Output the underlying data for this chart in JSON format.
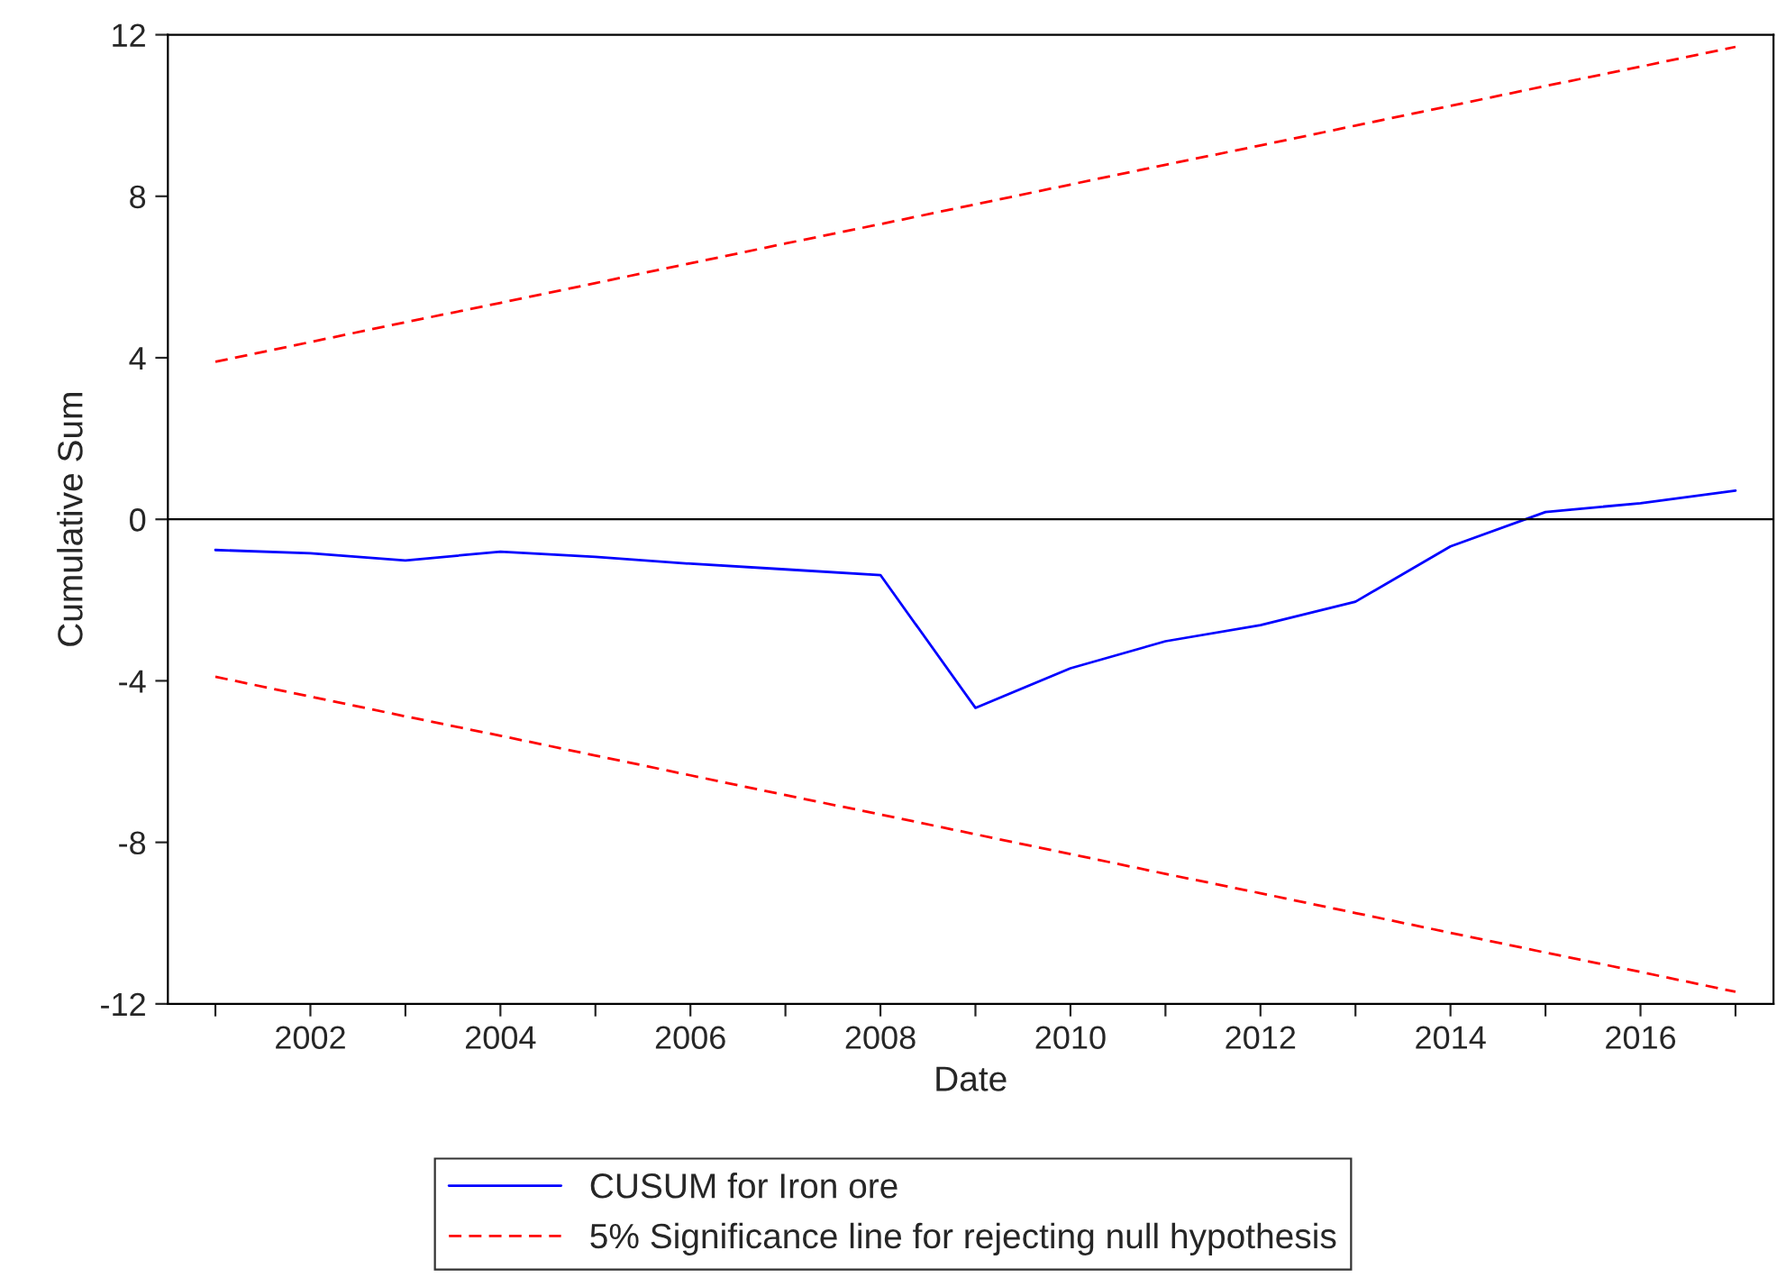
{
  "chart_data": {
    "type": "line",
    "xlabel": "Date",
    "ylabel": "Cumulative Sum",
    "x": [
      2001,
      2002,
      2003,
      2004,
      2005,
      2006,
      2007,
      2008,
      2009,
      2010,
      2011,
      2012,
      2013,
      2014,
      2015,
      2016,
      2017
    ],
    "series": [
      {
        "name": "CUSUM for Iron ore",
        "color": "#0000ff",
        "line_style": "solid",
        "values": [
          -0.76,
          -0.84,
          -1.02,
          -0.8,
          -0.93,
          -1.1,
          -1.24,
          -1.38,
          -4.67,
          -3.69,
          -3.02,
          -2.62,
          -2.04,
          -0.67,
          0.18,
          0.4,
          0.71
        ]
      },
      {
        "name": "5% Significance line for rejecting null hypothesis",
        "color": "#ff0000",
        "line_style": "dashed",
        "values": [
          3.9,
          4.39,
          4.88,
          5.36,
          5.85,
          6.34,
          6.83,
          7.31,
          7.8,
          8.29,
          8.78,
          9.26,
          9.75,
          10.24,
          10.73,
          11.21,
          11.7
        ]
      },
      {
        "color": "#ff0000",
        "line_style": "dashed",
        "values": [
          -3.9,
          -4.39,
          -4.88,
          -5.36,
          -5.85,
          -6.34,
          -6.83,
          -7.31,
          -7.8,
          -8.29,
          -8.78,
          -9.26,
          -9.75,
          -10.24,
          -10.73,
          -11.21,
          -11.7
        ]
      }
    ],
    "xlim": [
      2000.5,
      2017.4
    ],
    "xticks": [
      {
        "value": 2001,
        "label": null
      },
      2002,
      {
        "value": 2003,
        "label": null
      },
      2004,
      {
        "value": 2005,
        "label": null
      },
      2006,
      {
        "value": 2007,
        "label": null
      },
      2008,
      {
        "value": 2009,
        "label": null
      },
      2010,
      {
        "value": 2011,
        "label": null
      },
      2012,
      {
        "value": 2013,
        "label": null
      },
      2014,
      {
        "value": 2015,
        "label": null
      },
      2016,
      {
        "value": 2017,
        "label": null
      }
    ],
    "ylim": [
      -12,
      12
    ],
    "yticks": [
      -12,
      -8,
      -4,
      0,
      4,
      8,
      12
    ],
    "ref_lines": [
      {
        "axis": "y",
        "value": 0,
        "color": "#000000",
        "line_style": "solid"
      }
    ],
    "grid": false,
    "legend": "bottom",
    "marker": "none"
  }
}
